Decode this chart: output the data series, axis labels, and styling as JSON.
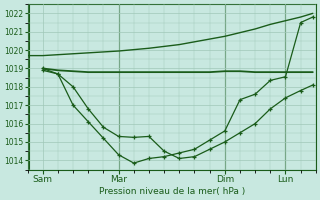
{
  "bg_color": "#c8e8e0",
  "grid_color": "#a0c8b8",
  "line_color": "#1a5c1a",
  "title": "Pression niveau de la mer( hPa )",
  "ylim": [
    1013.5,
    1022.5
  ],
  "yticks": [
    1014,
    1015,
    1016,
    1017,
    1018,
    1019,
    1020,
    1021,
    1022
  ],
  "xtick_labels": [
    "Sam",
    "Mar",
    "Dim",
    "Lun"
  ],
  "xtick_positions": [
    0.5,
    3.0,
    6.5,
    8.5
  ],
  "xlim": [
    0,
    9.5
  ],
  "vline_positions": [
    0.05,
    3.0,
    6.5,
    8.5
  ],
  "line1_x": [
    0.0,
    0.5,
    1.0,
    2.0,
    3.0,
    4.0,
    5.0,
    6.0,
    6.5,
    7.0,
    7.5,
    8.0,
    8.5,
    9.0,
    9.4
  ],
  "line1_y": [
    1019.7,
    1019.7,
    1019.75,
    1019.85,
    1019.95,
    1020.1,
    1020.3,
    1020.6,
    1020.75,
    1020.95,
    1021.15,
    1021.4,
    1021.6,
    1021.8,
    1022.0
  ],
  "line2_x": [
    0.5,
    1.0,
    1.5,
    2.0,
    2.5,
    3.0,
    4.0,
    5.0,
    6.0,
    6.5,
    7.0,
    7.5,
    8.0,
    8.5,
    9.4
  ],
  "line2_y": [
    1019.0,
    1018.9,
    1018.85,
    1018.8,
    1018.8,
    1018.8,
    1018.8,
    1018.8,
    1018.8,
    1018.85,
    1018.85,
    1018.8,
    1018.8,
    1018.8,
    1018.8
  ],
  "line3_x": [
    0.5,
    1.0,
    1.5,
    2.0,
    2.5,
    3.0,
    3.5,
    4.0,
    4.5,
    5.0,
    5.5,
    6.0,
    6.5,
    7.0,
    7.5,
    8.0,
    8.5,
    9.0,
    9.4
  ],
  "line3_y": [
    1018.9,
    1018.7,
    1018.0,
    1016.8,
    1015.8,
    1015.3,
    1015.25,
    1015.3,
    1014.5,
    1014.1,
    1014.2,
    1014.6,
    1015.0,
    1015.5,
    1016.0,
    1016.8,
    1017.4,
    1017.8,
    1018.1
  ],
  "line4_x": [
    0.5,
    1.0,
    1.5,
    2.0,
    2.5,
    3.0,
    3.5,
    4.0,
    4.5,
    5.0,
    5.5,
    6.0,
    6.5,
    7.0,
    7.5,
    8.0,
    8.5,
    9.0,
    9.4
  ],
  "line4_y": [
    1019.0,
    1018.7,
    1017.0,
    1016.1,
    1015.2,
    1014.3,
    1013.85,
    1014.1,
    1014.2,
    1014.4,
    1014.6,
    1015.1,
    1015.6,
    1017.3,
    1017.6,
    1018.35,
    1018.55,
    1021.5,
    1021.8
  ]
}
